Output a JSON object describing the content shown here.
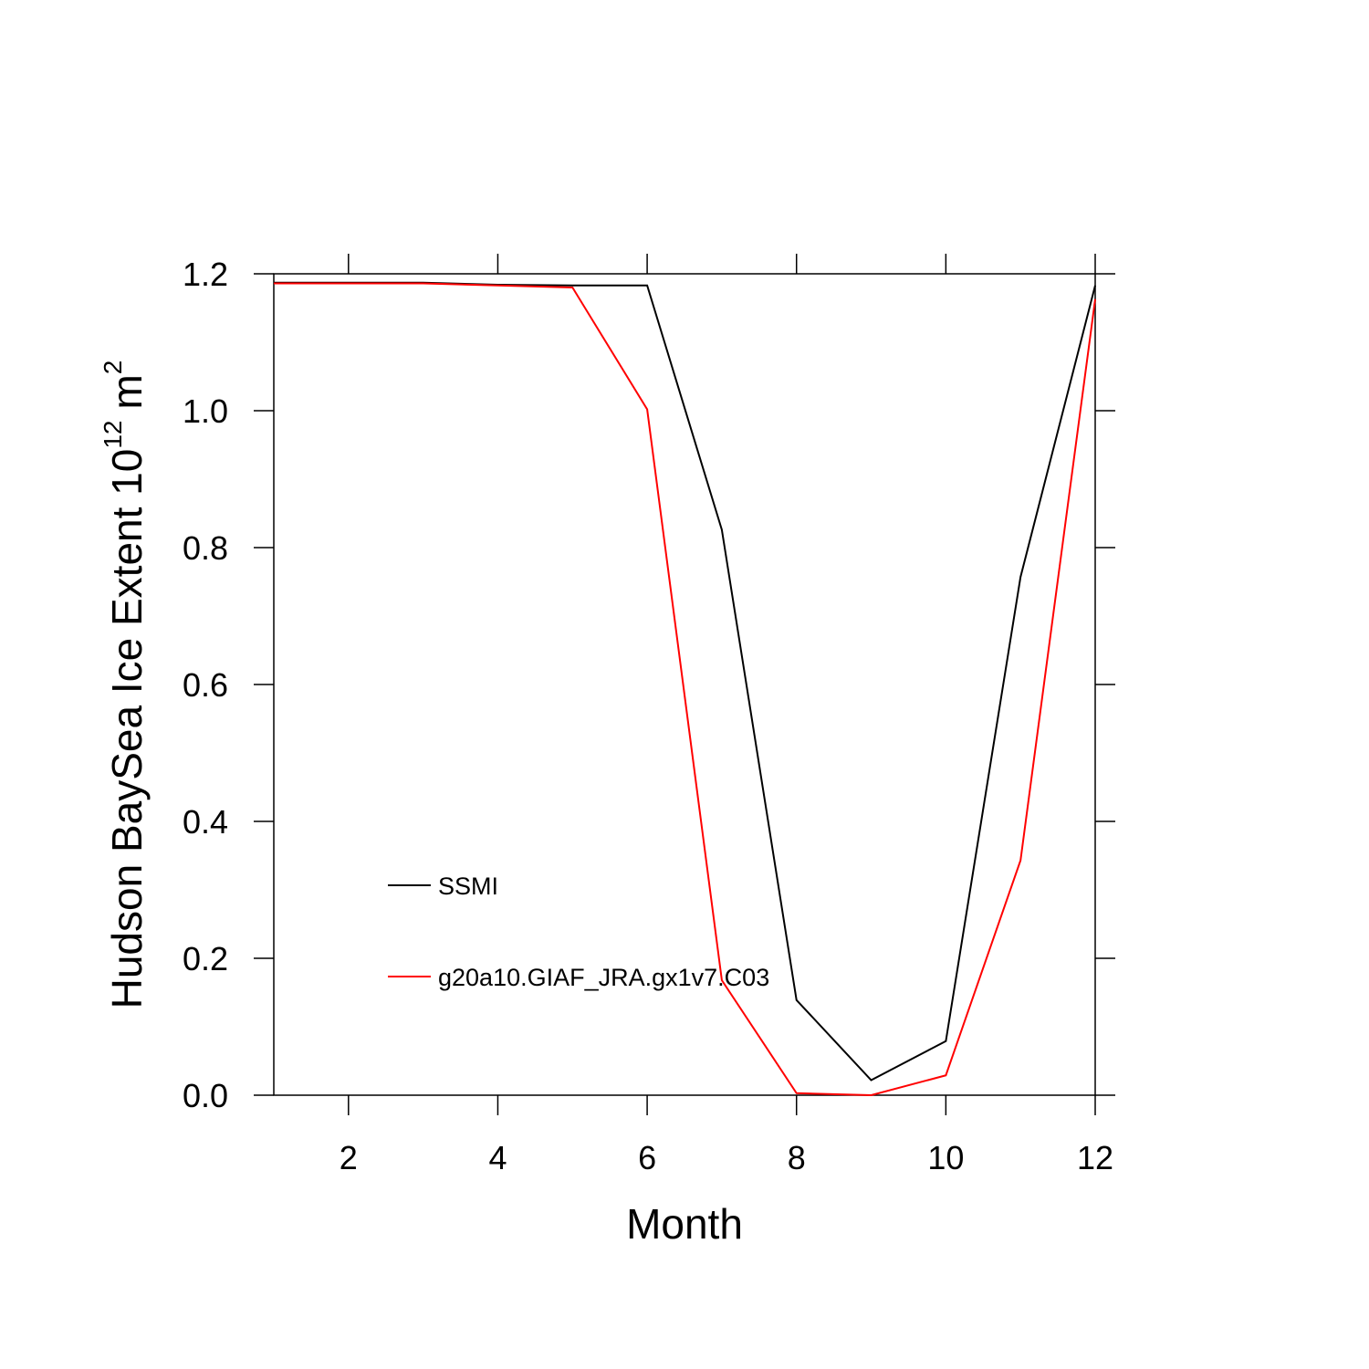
{
  "chart_data": {
    "type": "line",
    "xlabel": "Month",
    "ylabel_parts": [
      "Hudson BaySea Ice Extent 10",
      "12",
      "m",
      "2"
    ],
    "x": [
      1,
      2,
      3,
      4,
      5,
      6,
      7,
      8,
      9,
      10,
      11,
      12
    ],
    "series": [
      {
        "name": "SSMI",
        "color": "#000000",
        "values": [
          1.187,
          1.187,
          1.187,
          1.184,
          1.183,
          1.183,
          0.826,
          0.139,
          0.022,
          0.079,
          0.757,
          1.183
        ]
      },
      {
        "name": "g20a10.GIAF_JRA.gx1v7.C03",
        "color": "#ff0000",
        "values": [
          1.186,
          1.186,
          1.186,
          1.183,
          1.18,
          1.002,
          0.168,
          0.003,
          0.0,
          0.029,
          0.343,
          1.163
        ]
      }
    ],
    "xlim": [
      1,
      12
    ],
    "xticks": [
      2,
      4,
      6,
      8,
      10,
      12
    ],
    "ylim": [
      0,
      1.2
    ],
    "yticks": [
      {
        "value": 0,
        "label": "0.0"
      },
      {
        "value": 0.2,
        "label": "0.2"
      },
      {
        "value": 0.4,
        "label": "0.4"
      },
      {
        "value": 0.6,
        "label": "0.6"
      },
      {
        "value": 0.8,
        "label": "0.8"
      },
      {
        "value": 1.0,
        "label": "1.0"
      },
      {
        "value": 1.2,
        "label": "1.2"
      }
    ]
  }
}
